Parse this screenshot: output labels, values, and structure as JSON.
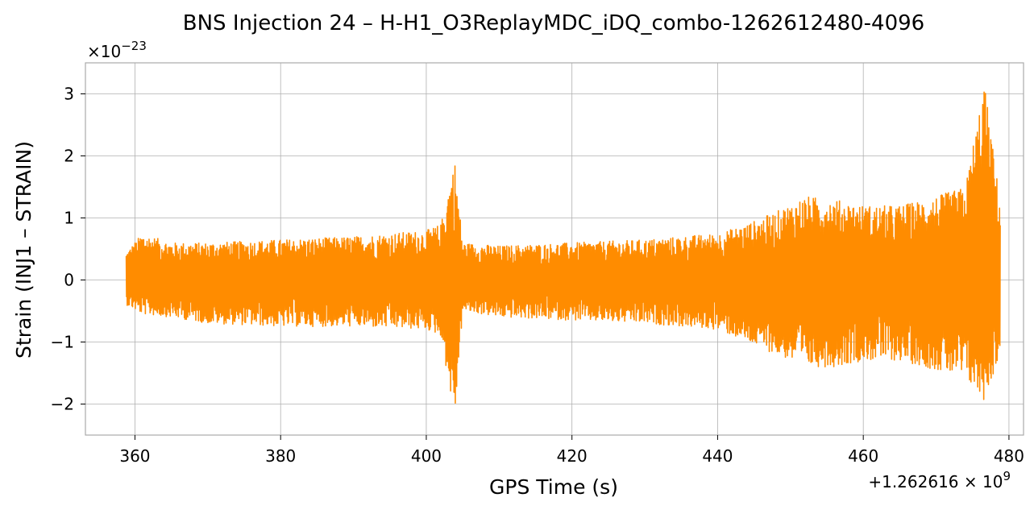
{
  "chart_data": {
    "type": "line",
    "title": "BNS Injection 24 – H-H1_O3ReplayMDC_iDQ_combo-1262612480-4096",
    "xlabel": "GPS Time (s)",
    "ylabel": "Strain (INJ1 – STRAIN)",
    "x_offset_label": "+1.262616 × 10",
    "x_offset_exp": "9",
    "y_scale_label": "×10",
    "y_scale_exp": "−23",
    "xlim": [
      353.2,
      482.0
    ],
    "ylim": [
      -2.5,
      3.5
    ],
    "x_ticks": [
      360,
      380,
      400,
      420,
      440,
      460,
      480
    ],
    "x_tick_labels": [
      "360",
      "380",
      "400",
      "420",
      "440",
      "460",
      "480"
    ],
    "y_ticks": [
      -2,
      -1,
      0,
      1,
      2,
      3
    ],
    "y_tick_labels": [
      "−2",
      "−1",
      "0",
      "1",
      "2",
      "3"
    ],
    "grid": true,
    "series": [
      {
        "color": "#ff8c00",
        "x_start": 358.8,
        "x_end": 478.8,
        "envelope": [
          {
            "x": 358.8,
            "upper": 0.45,
            "lower": -0.4
          },
          {
            "x": 361.0,
            "upper": 0.75,
            "lower": -0.55
          },
          {
            "x": 365.0,
            "upper": 0.6,
            "lower": -0.6
          },
          {
            "x": 370.0,
            "upper": 0.6,
            "lower": -0.7
          },
          {
            "x": 380.0,
            "upper": 0.65,
            "lower": -0.75
          },
          {
            "x": 390.0,
            "upper": 0.7,
            "lower": -0.75
          },
          {
            "x": 400.0,
            "upper": 0.8,
            "lower": -0.8
          },
          {
            "x": 402.0,
            "upper": 0.9,
            "lower": -0.9
          },
          {
            "x": 403.9,
            "upper": 1.95,
            "lower": -2.25
          },
          {
            "x": 405.0,
            "upper": 0.6,
            "lower": -0.5
          },
          {
            "x": 410.0,
            "upper": 0.55,
            "lower": -0.6
          },
          {
            "x": 420.0,
            "upper": 0.6,
            "lower": -0.65
          },
          {
            "x": 430.0,
            "upper": 0.65,
            "lower": -0.7
          },
          {
            "x": 440.0,
            "upper": 0.75,
            "lower": -0.8
          },
          {
            "x": 444.0,
            "upper": 0.9,
            "lower": -1.0
          },
          {
            "x": 448.0,
            "upper": 1.1,
            "lower": -1.2
          },
          {
            "x": 452.0,
            "upper": 1.35,
            "lower": -1.4
          },
          {
            "x": 456.0,
            "upper": 1.3,
            "lower": -1.4
          },
          {
            "x": 460.0,
            "upper": 1.2,
            "lower": -1.3
          },
          {
            "x": 465.0,
            "upper": 1.2,
            "lower": -1.3
          },
          {
            "x": 470.0,
            "upper": 1.35,
            "lower": -1.45
          },
          {
            "x": 474.0,
            "upper": 1.5,
            "lower": -1.6
          },
          {
            "x": 476.6,
            "upper": 3.2,
            "lower": -1.95
          },
          {
            "x": 478.8,
            "upper": 1.25,
            "lower": -1.2
          }
        ]
      }
    ]
  }
}
